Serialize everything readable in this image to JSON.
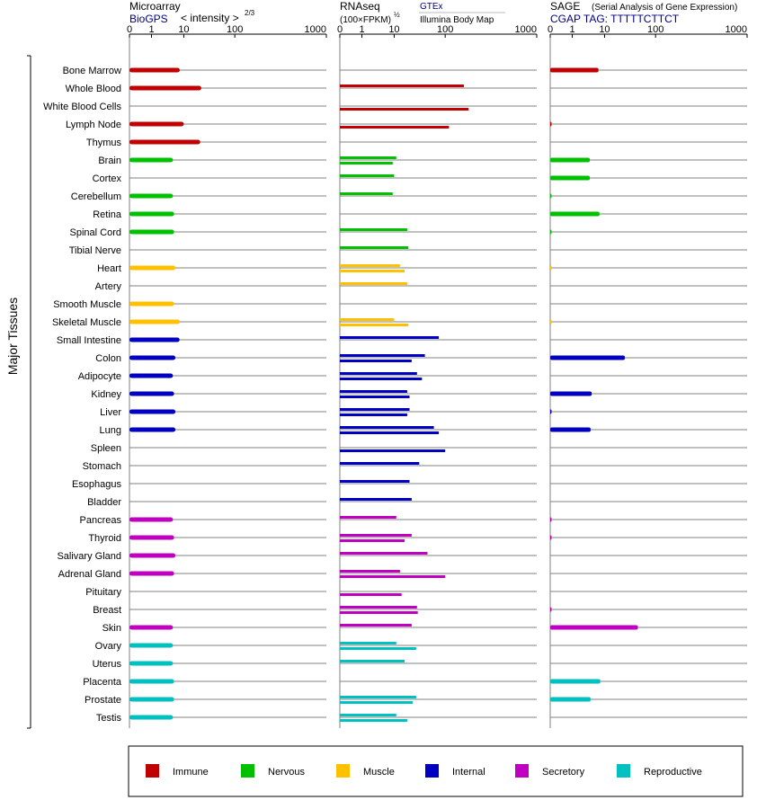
{
  "y_axis_label": "Major Tissues",
  "tissues": [
    "Bone Marrow",
    "Whole Blood",
    "White Blood Cells",
    "Lymph Node",
    "Thymus",
    "Brain",
    "Cortex",
    "Cerebellum",
    "Retina",
    "Spinal Cord",
    "Tibial Nerve",
    "Heart",
    "Artery",
    "Smooth Muscle",
    "Skeletal Muscle",
    "Small Intestine",
    "Colon",
    "Adipocyte",
    "Kidney",
    "Liver",
    "Lung",
    "Spleen",
    "Stomach",
    "Esophagus",
    "Bladder",
    "Pancreas",
    "Thyroid",
    "Salivary Gland",
    "Adrenal Gland",
    "Pituitary",
    "Breast",
    "Skin",
    "Ovary",
    "Uterus",
    "Placenta",
    "Prostate",
    "Testis"
  ],
  "groups": [
    "Immune",
    "Immune",
    "Immune",
    "Immune",
    "Immune",
    "Nervous",
    "Nervous",
    "Nervous",
    "Nervous",
    "Nervous",
    "Nervous",
    "Muscle",
    "Muscle",
    "Muscle",
    "Muscle",
    "Internal",
    "Internal",
    "Internal",
    "Internal",
    "Internal",
    "Internal",
    "Internal",
    "Internal",
    "Internal",
    "Internal",
    "Secretory",
    "Secretory",
    "Secretory",
    "Secretory",
    "Secretory",
    "Secretory",
    "Secretory",
    "Reproductive",
    "Reproductive",
    "Reproductive",
    "Reproductive",
    "Reproductive"
  ],
  "colors": {
    "Immune": "#c00000",
    "Nervous": "#00c000",
    "Muscle": "#ffc000",
    "Internal": "#0000c0",
    "Secretory": "#c000c0",
    "Reproductive": "#00c0c0"
  },
  "legend": [
    "Immune",
    "Nervous",
    "Muscle",
    "Internal",
    "Secretory",
    "Reproductive"
  ],
  "panels": [
    {
      "id": "microarray",
      "title": "Microarray",
      "title_right": "< intensity >",
      "title_right_exp": "2/3",
      "subtitle": "BioGPS",
      "subtitle_right": "",
      "subtitle_small": ""
    },
    {
      "id": "rnaseq",
      "title": "RNAseq",
      "title_right": "",
      "title_right_exp": "",
      "subtitle": "(100×FPKM)",
      "subtitle_exp": "½",
      "subtitle_right": "GTEx",
      "subtitle_small": "Illumina Body Map"
    },
    {
      "id": "sage",
      "title": "SAGE",
      "title_right": "(Serial Analysis of Gene Expression)",
      "title_right_exp": "",
      "subtitle": "CGAP TAG: TTTTTCTTCT",
      "subtitle_right": "",
      "subtitle_small": ""
    }
  ],
  "chart_data": [
    {
      "type": "bar",
      "title": "Microarray",
      "source": "BioGPS",
      "scale": "power 2/3",
      "xlim": [
        0,
        1000
      ],
      "xticks": [
        "0",
        "1",
        "10",
        "100",
        "1000"
      ],
      "categories": [
        "Bone Marrow",
        "Whole Blood",
        "White Blood Cells",
        "Lymph Node",
        "Thymus",
        "Brain",
        "Cortex",
        "Cerebellum",
        "Retina",
        "Spinal Cord",
        "Tibial Nerve",
        "Heart",
        "Artery",
        "Smooth Muscle",
        "Skeletal Muscle",
        "Small Intestine",
        "Colon",
        "Adipocyte",
        "Kidney",
        "Liver",
        "Lung",
        "Spleen",
        "Stomach",
        "Esophagus",
        "Bladder",
        "Pancreas",
        "Thyroid",
        "Salivary Gland",
        "Adrenal Gland",
        "Pituitary",
        "Breast",
        "Skin",
        "Ovary",
        "Uterus",
        "Placenta",
        "Prostate",
        "Testis"
      ],
      "values": [
        7.5,
        22,
        null,
        10,
        21,
        4.6,
        null,
        4.6,
        5,
        5,
        null,
        5.5,
        null,
        5,
        7.5,
        7.4,
        5.5,
        4.6,
        5,
        5.5,
        5.5,
        null,
        null,
        null,
        null,
        4.6,
        5,
        5.5,
        5,
        null,
        null,
        4.6,
        4.6,
        4.6,
        5,
        5,
        4.6
      ]
    },
    {
      "type": "bar",
      "title": "RNAseq",
      "xlim": [
        0,
        1000
      ],
      "xticks": [
        "0",
        "1",
        "10",
        "100",
        "1000"
      ],
      "categories": [
        "Bone Marrow",
        "Whole Blood",
        "White Blood Cells",
        "Lymph Node",
        "Thymus",
        "Brain",
        "Cortex",
        "Cerebellum",
        "Retina",
        "Spinal Cord",
        "Tibial Nerve",
        "Heart",
        "Artery",
        "Smooth Muscle",
        "Skeletal Muscle",
        "Small Intestine",
        "Colon",
        "Adipocyte",
        "Kidney",
        "Liver",
        "Lung",
        "Spleen",
        "Stomach",
        "Esophagus",
        "Bladder",
        "Pancreas",
        "Thyroid",
        "Salivary Gland",
        "Adrenal Gland",
        "Pituitary",
        "Breast",
        "Skin",
        "Ovary",
        "Uterus",
        "Placenta",
        "Prostate",
        "Testis"
      ],
      "series": [
        {
          "name": "GTEx",
          "values": [
            null,
            160,
            null,
            null,
            null,
            11,
            10,
            9,
            null,
            18,
            19,
            13,
            18,
            null,
            10,
            75,
            40,
            28,
            18,
            20,
            60,
            null,
            31,
            20,
            22,
            11,
            22,
            45,
            13,
            null,
            28,
            22,
            11,
            16,
            null,
            27,
            11
          ]
        },
        {
          "name": "Illumina Body Map",
          "values": [
            null,
            null,
            180,
            110,
            null,
            9,
            null,
            null,
            null,
            null,
            null,
            16,
            null,
            null,
            19,
            null,
            22,
            35,
            20,
            18,
            75,
            100,
            null,
            null,
            null,
            null,
            16,
            null,
            100,
            14,
            29,
            null,
            27,
            null,
            null,
            23,
            18
          ]
        }
      ]
    },
    {
      "type": "bar",
      "title": "SAGE",
      "xlim": [
        0,
        1000
      ],
      "xticks": [
        "0",
        "1",
        "10",
        "100",
        "1000"
      ],
      "categories": [
        "Bone Marrow",
        "Whole Blood",
        "White Blood Cells",
        "Lymph Node",
        "Thymus",
        "Brain",
        "Cortex",
        "Cerebellum",
        "Retina",
        "Spinal Cord",
        "Tibial Nerve",
        "Heart",
        "Artery",
        "Smooth Muscle",
        "Skeletal Muscle",
        "Small Intestine",
        "Colon",
        "Adipocyte",
        "Kidney",
        "Liver",
        "Lung",
        "Spleen",
        "Stomach",
        "Esophagus",
        "Bladder",
        "Pancreas",
        "Thyroid",
        "Salivary Gland",
        "Adrenal Gland",
        "Pituitary",
        "Breast",
        "Skin",
        "Ovary",
        "Uterus",
        "Placenta",
        "Prostate",
        "Testis"
      ],
      "values": [
        6.5,
        null,
        null,
        0.02,
        null,
        3.5,
        3.5,
        0.02,
        7,
        0.02,
        null,
        0.01,
        null,
        null,
        0.01,
        null,
        25,
        null,
        4,
        0.05,
        3.7,
        null,
        null,
        null,
        null,
        0.02,
        0.02,
        null,
        null,
        null,
        0.02,
        45,
        null,
        null,
        7.4,
        3.7,
        null
      ]
    }
  ]
}
